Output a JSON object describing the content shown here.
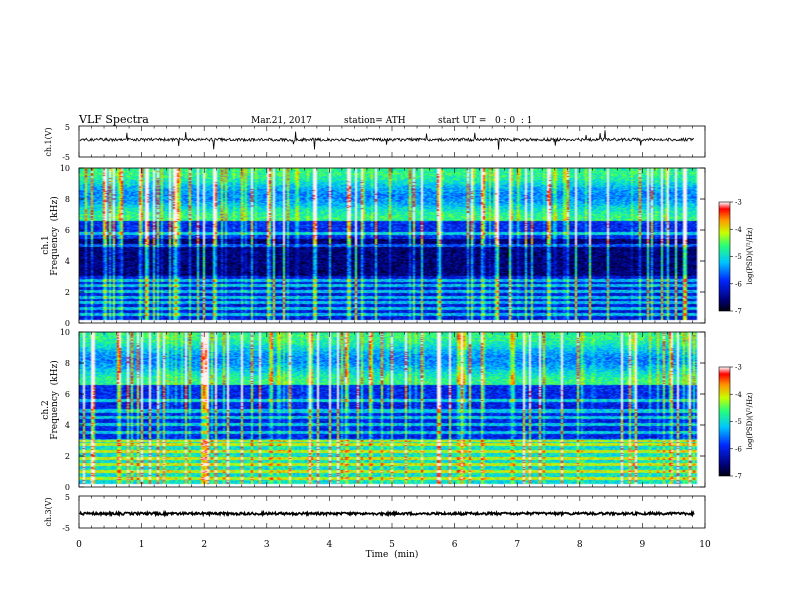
{
  "header": {
    "title": "VLF Spectra",
    "date": "Mar.21, 2017",
    "station": "station= ATH",
    "start_ut": "start UT =   0 : 0  : 1"
  },
  "chart_data": [
    {
      "type": "line",
      "name": "ch1-waveform",
      "ylabel": "ch.1(V)",
      "ylim": [
        -5,
        5
      ],
      "yticks": [
        "5",
        "-5"
      ],
      "xlim": [
        0,
        10
      ],
      "trace_end_min": 9.83,
      "baseline_v": 0.6,
      "color": "#000000"
    },
    {
      "type": "heatmap",
      "name": "ch1-spectrogram",
      "ylabel": "ch.1",
      "ylabel2": "Frequency  (kHz)",
      "ylim": [
        0,
        10
      ],
      "yticks": [
        "0",
        "2",
        "4",
        "6",
        "8",
        "10"
      ],
      "xlim": [
        0,
        10
      ],
      "data_end_min": 9.83,
      "colorbar": {
        "label": "log(PSD)(V²/Hz)",
        "range": [
          -7,
          -3
        ],
        "ticks": [
          "-3",
          "-4",
          "-5",
          "-6",
          "-7"
        ]
      },
      "bands_khz": [
        0.5,
        0.9,
        1.3,
        1.6,
        2.0,
        2.4,
        2.7,
        5.0,
        5.8
      ]
    },
    {
      "type": "heatmap",
      "name": "ch2-spectrogram",
      "ylabel": "ch.2",
      "ylabel2": "Frequency  (kHz)",
      "ylim": [
        0,
        10
      ],
      "yticks": [
        "0",
        "2",
        "4",
        "6",
        "8",
        "10"
      ],
      "xlim": [
        0,
        10
      ],
      "data_end_min": 9.83,
      "colorbar": {
        "label": "log(PSD)(V²/Hz)",
        "range": [
          -7,
          -3
        ],
        "ticks": [
          "-3",
          "-4",
          "-5",
          "-6",
          "-7"
        ]
      },
      "bands_khz": [
        0.5,
        1.0,
        1.4,
        1.8,
        2.3,
        2.7,
        3.0,
        3.5,
        4.0,
        4.5,
        4.9,
        5.6
      ]
    },
    {
      "type": "line",
      "name": "ch3-waveform",
      "ylabel": "ch.3(V)",
      "ylim": [
        -5,
        5
      ],
      "yticks": [
        "5",
        "-5"
      ],
      "xlim": [
        0,
        10
      ],
      "trace_end_min": 9.83,
      "baseline_v": -0.5,
      "color": "#000000"
    }
  ],
  "time_axis": {
    "label": "Time  (min)",
    "ticks": [
      "0",
      "1",
      "2",
      "3",
      "4",
      "5",
      "6",
      "7",
      "8",
      "9",
      "10"
    ]
  }
}
